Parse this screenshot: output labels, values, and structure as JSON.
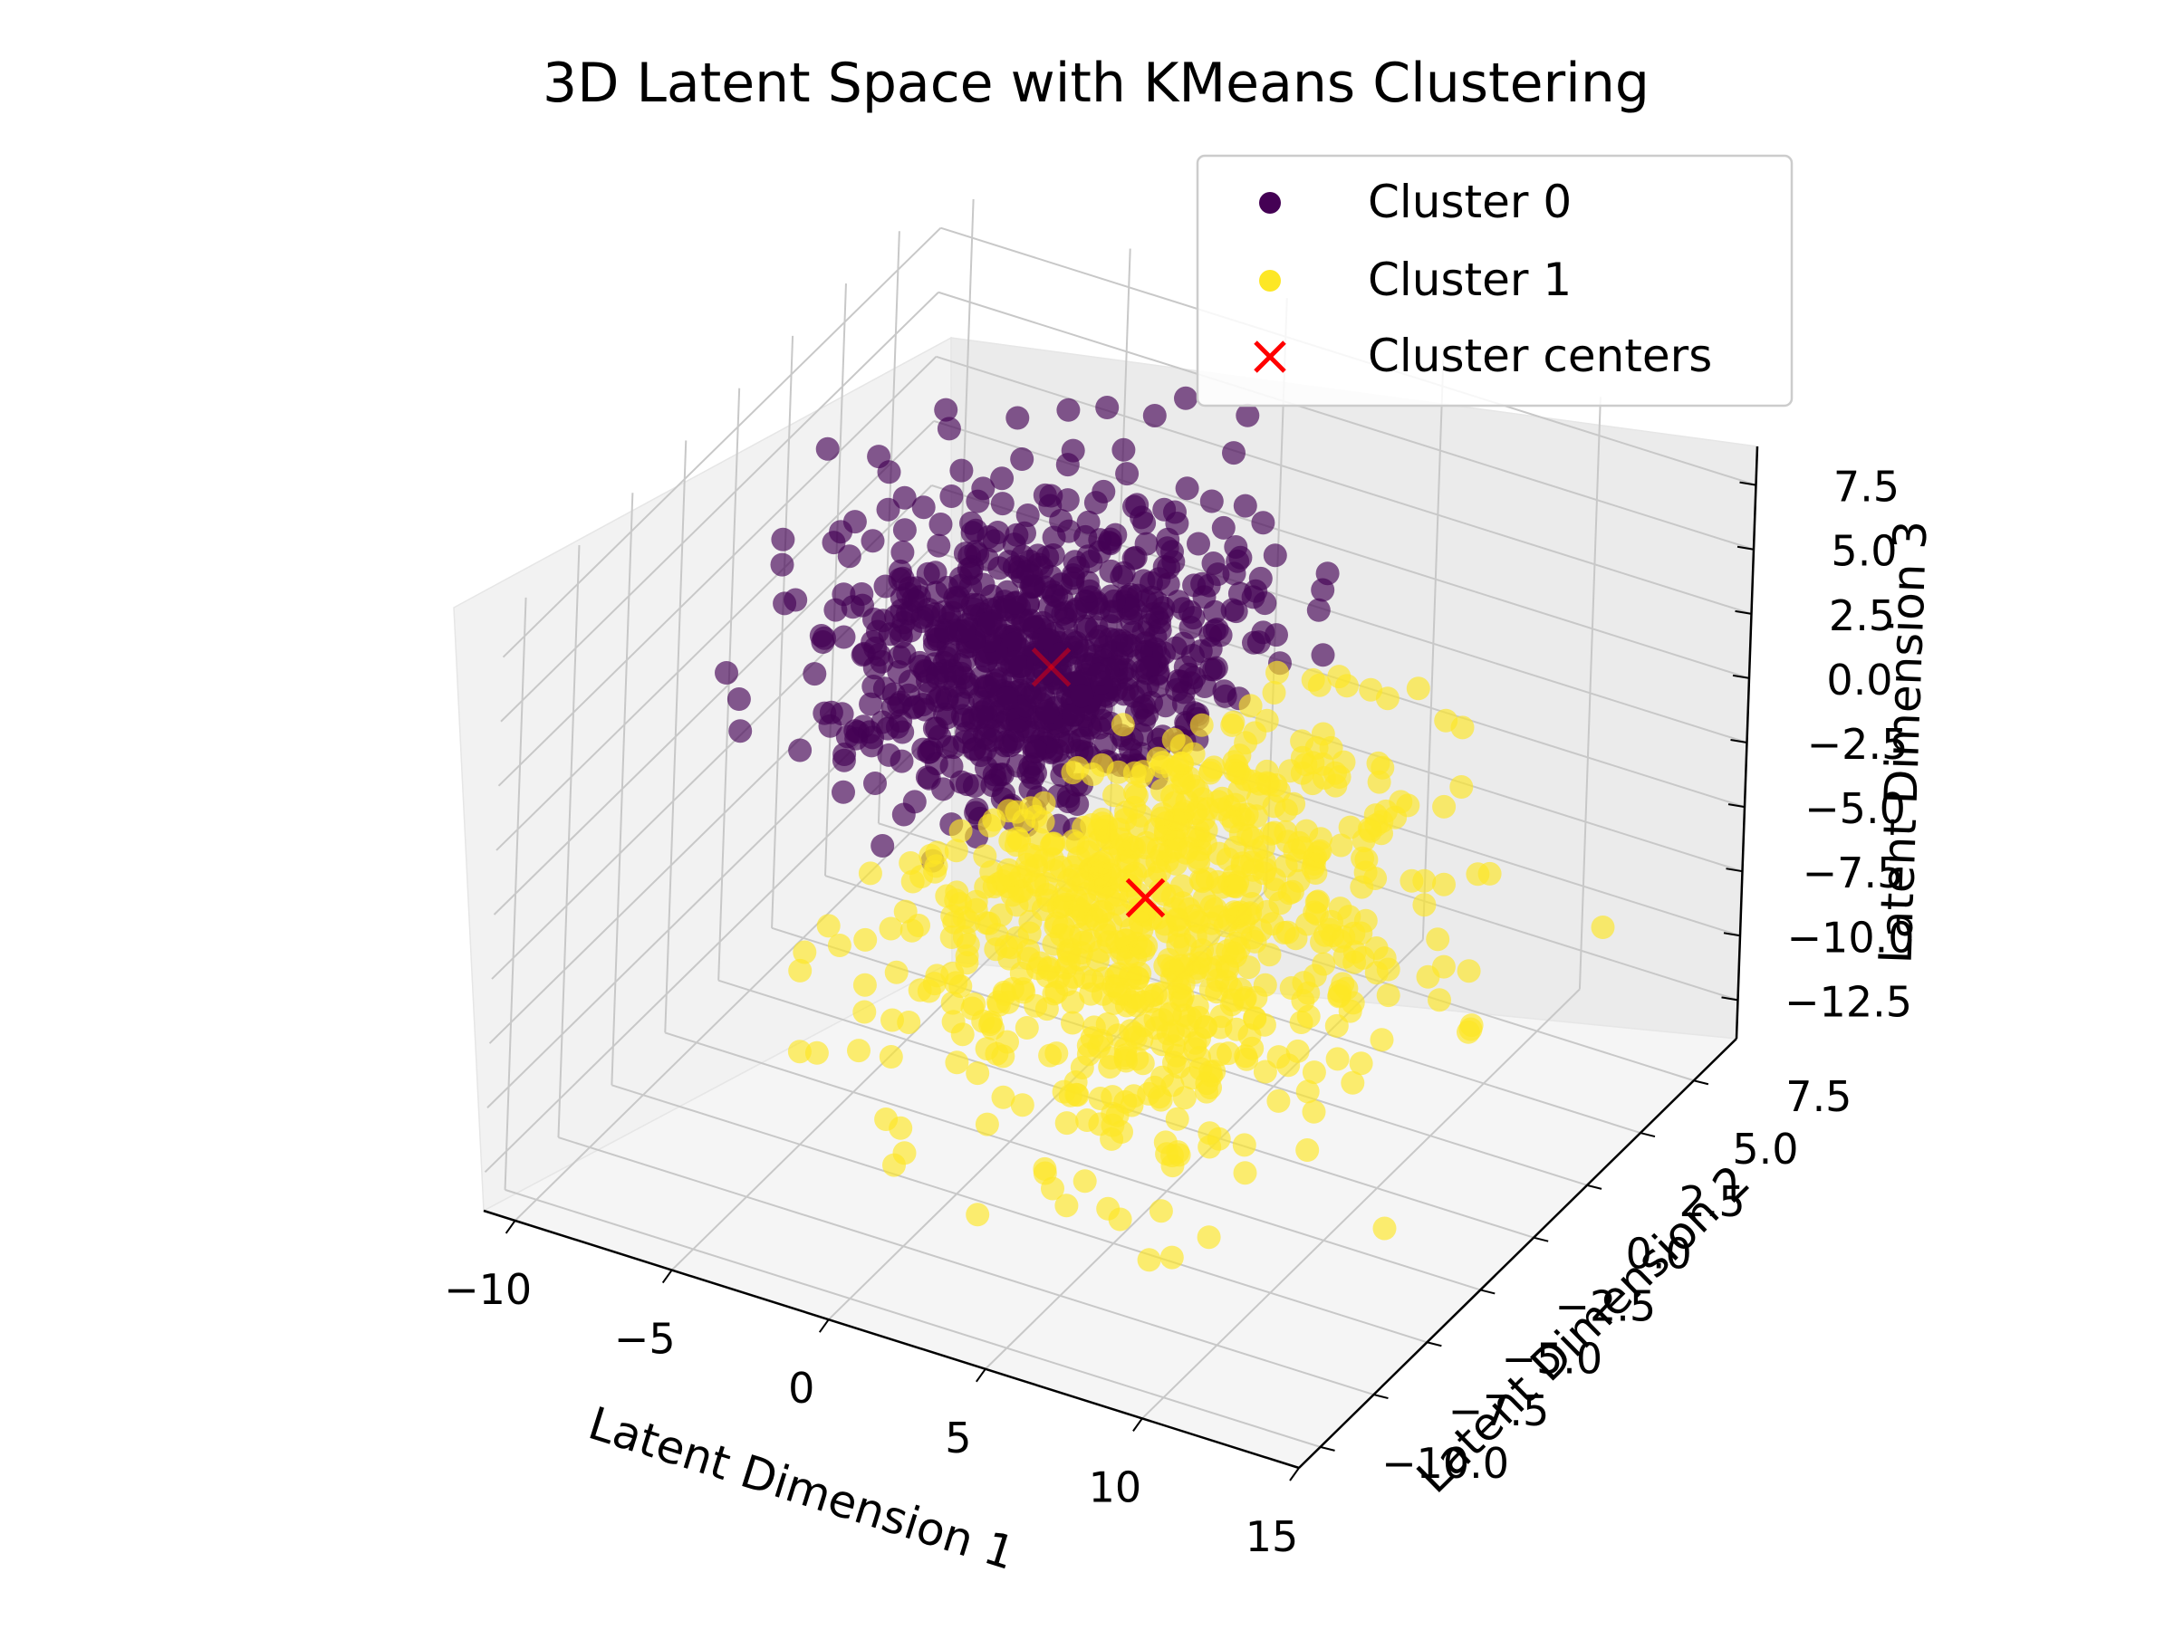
{
  "chart_data": {
    "type": "scatter",
    "projection": "3d",
    "title": "3D Latent Space with KMeans Clustering",
    "xlabel": "Latent Dimension 1",
    "ylabel": "Latent Dimension 2",
    "zlabel": "Latent Dimension 3",
    "xlim": [
      -11,
      15
    ],
    "ylim": [
      -11,
      9.5
    ],
    "zlim": [
      -14,
      9
    ],
    "x_ticks": [
      "−10",
      "−5",
      "0",
      "5",
      "10",
      "15"
    ],
    "y_ticks": [
      "−10.0",
      "−7.5",
      "−5.0",
      "−2.5",
      "0.0",
      "2.5",
      "5.0",
      "7.5"
    ],
    "z_ticks": [
      "−12.5",
      "−10.0",
      "−7.5",
      "−5.0",
      "−2.5",
      "0.0",
      "2.5",
      "5.0",
      "7.5"
    ],
    "grid": true,
    "legend_position": "top-right",
    "legend": [
      {
        "label": "Cluster 0",
        "marker": "circle",
        "color": "#440154"
      },
      {
        "label": "Cluster 1",
        "marker": "circle",
        "color": "#fde725"
      },
      {
        "label": "Cluster centers",
        "marker": "x",
        "color": "#ff0000"
      }
    ],
    "series": [
      {
        "name": "Cluster 0",
        "color": "#440154",
        "alpha": 0.65,
        "n_points": 800,
        "center": [
          -1.5,
          1.0,
          1.0
        ],
        "spread": [
          2.8,
          2.6,
          2.6
        ]
      },
      {
        "name": "Cluster 1",
        "color": "#fde725",
        "alpha": 0.65,
        "n_points": 800,
        "center": [
          4.0,
          -2.5,
          -3.0
        ],
        "spread": [
          3.6,
          3.4,
          3.4
        ]
      }
    ],
    "centers": [
      {
        "name": "Cluster 0",
        "x": -1.5,
        "y": 1.0,
        "z": 1.0
      },
      {
        "name": "Cluster 1",
        "x": 4.0,
        "y": -2.5,
        "z": -3.0
      }
    ]
  }
}
